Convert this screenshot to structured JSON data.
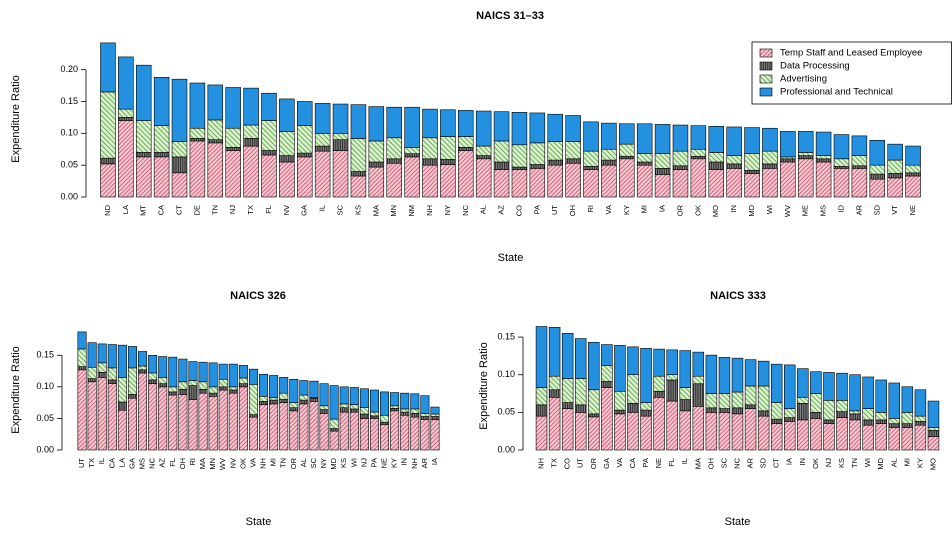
{
  "chart_data": [
    {
      "type": "bar",
      "stacked": true,
      "title": "NAICS 31–33",
      "x_label": "State",
      "y_label": "Expenditure Ratio",
      "legend": "top-right",
      "categories": [
        "ND",
        "LA",
        "MT",
        "CA",
        "CT",
        "DE",
        "TN",
        "NJ",
        "TX",
        "FL",
        "NV",
        "GA",
        "IL",
        "SC",
        "KS",
        "MA",
        "MN",
        "NM",
        "NH",
        "NY",
        "NC",
        "AL",
        "AZ",
        "CO",
        "PA",
        "UT",
        "OH",
        "RI",
        "VA",
        "KY",
        "MI",
        "IA",
        "OR",
        "OK",
        "MO",
        "IN",
        "MD",
        "WI",
        "WV",
        "ME",
        "MS",
        "ID",
        "AR",
        "SD",
        "VT",
        "NE"
      ],
      "series": [
        {
          "name": "Temp Staff and Leased Employee",
          "color": "#f6c9d2",
          "values": [
            0.052,
            0.12,
            0.063,
            0.063,
            0.038,
            0.088,
            0.085,
            0.073,
            0.08,
            0.066,
            0.055,
            0.063,
            0.072,
            0.073,
            0.033,
            0.047,
            0.053,
            0.063,
            0.05,
            0.051,
            0.073,
            0.06,
            0.043,
            0.043,
            0.045,
            0.05,
            0.053,
            0.043,
            0.05,
            0.06,
            0.05,
            0.035,
            0.043,
            0.06,
            0.043,
            0.045,
            0.037,
            0.045,
            0.055,
            0.06,
            0.055,
            0.045,
            0.045,
            0.028,
            0.03,
            0.033
          ]
        },
        {
          "name": "Data Processing",
          "color": "#8a8a8a",
          "values": [
            0.009,
            0.005,
            0.007,
            0.007,
            0.025,
            0.004,
            0.005,
            0.005,
            0.012,
            0.007,
            0.01,
            0.006,
            0.008,
            0.017,
            0.007,
            0.008,
            0.007,
            0.005,
            0.01,
            0.008,
            0.005,
            0.005,
            0.012,
            0.004,
            0.006,
            0.008,
            0.007,
            0.005,
            0.008,
            0.004,
            0.005,
            0.01,
            0.006,
            0.004,
            0.012,
            0.007,
            0.005,
            0.007,
            0.005,
            0.005,
            0.005,
            0.003,
            0.004,
            0.008,
            0.007,
            0.005
          ]
        },
        {
          "name": "Advertising",
          "color": "#dcf2cf",
          "values": [
            0.104,
            0.013,
            0.05,
            0.042,
            0.024,
            0.016,
            0.031,
            0.03,
            0.021,
            0.047,
            0.038,
            0.043,
            0.02,
            0.01,
            0.052,
            0.033,
            0.033,
            0.01,
            0.033,
            0.036,
            0.017,
            0.015,
            0.033,
            0.035,
            0.034,
            0.029,
            0.027,
            0.024,
            0.017,
            0.019,
            0.013,
            0.023,
            0.023,
            0.011,
            0.015,
            0.013,
            0.026,
            0.02,
            0.003,
            0.005,
            0.005,
            0.012,
            0.016,
            0.014,
            0.021,
            0.012
          ]
        },
        {
          "name": "Professional and Technical",
          "color": "#2490e0",
          "values": [
            0.077,
            0.082,
            0.087,
            0.076,
            0.098,
            0.071,
            0.055,
            0.064,
            0.058,
            0.043,
            0.051,
            0.038,
            0.047,
            0.046,
            0.053,
            0.054,
            0.048,
            0.063,
            0.045,
            0.042,
            0.041,
            0.055,
            0.046,
            0.051,
            0.047,
            0.043,
            0.041,
            0.046,
            0.041,
            0.032,
            0.047,
            0.046,
            0.041,
            0.037,
            0.041,
            0.045,
            0.041,
            0.036,
            0.04,
            0.033,
            0.037,
            0.038,
            0.031,
            0.039,
            0.025,
            0.03
          ]
        }
      ],
      "ylim": [
        0,
        0.245
      ],
      "yticks": [
        {
          "value": 0,
          "label": "0.00"
        },
        0.05,
        {
          "value": 0.1,
          "label": "0.10"
        },
        0.15,
        {
          "value": 0.2,
          "label": "0.20"
        }
      ]
    },
    {
      "type": "bar",
      "stacked": true,
      "title": "NAICS 326",
      "x_label": "State",
      "y_label": "Expenditure Ratio",
      "categories": [
        "UT",
        "TX",
        "IL",
        "CA",
        "LA",
        "GA",
        "MS",
        "NC",
        "AZ",
        "FL",
        "OH",
        "RI",
        "MA",
        "MN",
        "WV",
        "NV",
        "OK",
        "VA",
        "NH",
        "MI",
        "TN",
        "OR",
        "AL",
        "SC",
        "NY",
        "MD",
        "KS",
        "WI",
        "NJ",
        "PA",
        "NE",
        "KY",
        "IN",
        "NH",
        "AR",
        "IA"
      ],
      "series": [
        {
          "color": "#f6c9d2",
          "values": [
            0.127,
            0.108,
            0.115,
            0.105,
            0.063,
            0.082,
            0.122,
            0.105,
            0.1,
            0.087,
            0.088,
            0.08,
            0.09,
            0.085,
            0.095,
            0.09,
            0.1,
            0.052,
            0.072,
            0.073,
            0.075,
            0.062,
            0.073,
            0.077,
            0.058,
            0.03,
            0.06,
            0.06,
            0.05,
            0.05,
            0.04,
            0.062,
            0.055,
            0.052,
            0.048,
            0.048
          ]
        },
        {
          "color": "#8a8a8a",
          "values": [
            0.005,
            0.005,
            0.008,
            0.006,
            0.013,
            0.006,
            0.005,
            0.006,
            0.005,
            0.005,
            0.008,
            0.022,
            0.006,
            0.005,
            0.005,
            0.005,
            0.005,
            0.004,
            0.005,
            0.006,
            0.005,
            0.005,
            0.006,
            0.005,
            0.006,
            0.004,
            0.007,
            0.005,
            0.007,
            0.004,
            0.004,
            0.004,
            0.005,
            0.006,
            0.005,
            0.005
          ]
        },
        {
          "color": "#dcf2cf",
          "values": [
            0.028,
            0.018,
            0.015,
            0.019,
            0.039,
            0.042,
            0.006,
            0.011,
            0.01,
            0.008,
            0.012,
            0.008,
            0.012,
            0.01,
            0.012,
            0.005,
            0.009,
            0.048,
            0.008,
            0.004,
            0.01,
            0.008,
            0.008,
            0.001,
            0.006,
            0.015,
            0.006,
            0.007,
            0.01,
            0.006,
            0.011,
            0.004,
            0.005,
            0.007,
            0.005,
            0.004
          ]
        },
        {
          "color": "#2490e0",
          "values": [
            0.027,
            0.039,
            0.03,
            0.037,
            0.051,
            0.034,
            0.023,
            0.028,
            0.033,
            0.047,
            0.036,
            0.03,
            0.031,
            0.038,
            0.024,
            0.036,
            0.02,
            0.024,
            0.035,
            0.035,
            0.025,
            0.037,
            0.023,
            0.026,
            0.035,
            0.053,
            0.027,
            0.027,
            0.03,
            0.035,
            0.037,
            0.021,
            0.025,
            0.024,
            0.028,
            0.011
          ]
        }
      ],
      "ylim": [
        0,
        0.19
      ],
      "yticks": [
        {
          "value": 0,
          "label": "0.00"
        },
        0.05,
        {
          "value": 0.1,
          "label": "0.10"
        },
        0.15
      ]
    },
    {
      "type": "bar",
      "stacked": true,
      "title": "NAICS 333",
      "x_label": "State",
      "y_label": "Expenditure Ratio",
      "categories": [
        "NH",
        "TX",
        "CO",
        "UT",
        "OR",
        "GA",
        "VA",
        "CA",
        "PA",
        "NE",
        "FL",
        "IL",
        "MA",
        "OH",
        "SC",
        "NC",
        "AR",
        "SD",
        "CT",
        "IA",
        "IN",
        "OK",
        "NJ",
        "KS",
        "TN",
        "WI",
        "MD",
        "AL",
        "MI",
        "KY",
        "MO"
      ],
      "series": [
        {
          "color": "#f6c9d2",
          "values": [
            0.045,
            0.07,
            0.055,
            0.05,
            0.044,
            0.083,
            0.048,
            0.05,
            0.045,
            0.07,
            0.065,
            0.052,
            0.058,
            0.05,
            0.05,
            0.048,
            0.055,
            0.045,
            0.035,
            0.038,
            0.04,
            0.042,
            0.035,
            0.043,
            0.04,
            0.033,
            0.035,
            0.03,
            0.03,
            0.033,
            0.018
          ]
        },
        {
          "color": "#8a8a8a",
          "values": [
            0.015,
            0.01,
            0.008,
            0.01,
            0.004,
            0.008,
            0.005,
            0.012,
            0.008,
            0.008,
            0.028,
            0.015,
            0.03,
            0.006,
            0.005,
            0.008,
            0.005,
            0.007,
            0.006,
            0.005,
            0.022,
            0.008,
            0.005,
            0.008,
            0.008,
            0.007,
            0.005,
            0.005,
            0.005,
            0.005,
            0.008
          ]
        },
        {
          "color": "#dcf2cf",
          "values": [
            0.023,
            0.018,
            0.032,
            0.035,
            0.032,
            0.021,
            0.025,
            0.038,
            0.01,
            0.02,
            0.007,
            0.016,
            0.01,
            0.019,
            0.02,
            0.021,
            0.025,
            0.033,
            0.022,
            0.012,
            0.008,
            0.025,
            0.026,
            0.015,
            0.004,
            0.015,
            0.01,
            0.007,
            0.015,
            0.007,
            0.004
          ]
        },
        {
          "color": "#2490e0",
          "values": [
            0.081,
            0.065,
            0.06,
            0.053,
            0.063,
            0.028,
            0.061,
            0.037,
            0.072,
            0.036,
            0.033,
            0.049,
            0.032,
            0.051,
            0.048,
            0.045,
            0.035,
            0.033,
            0.051,
            0.058,
            0.038,
            0.029,
            0.037,
            0.036,
            0.048,
            0.042,
            0.043,
            0.047,
            0.034,
            0.035,
            0.035
          ]
        }
      ],
      "ylim": [
        0,
        0.17
      ],
      "yticks": [
        {
          "value": 0,
          "label": "0.00"
        },
        0.05,
        {
          "value": 0.1,
          "label": "0.10"
        },
        0.15
      ]
    }
  ]
}
